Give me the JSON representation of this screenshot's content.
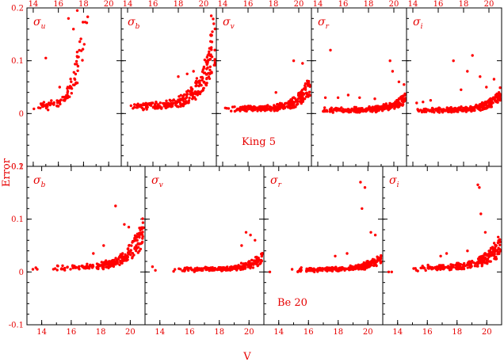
{
  "figure": {
    "ylabel": "Error",
    "xlabel": "V",
    "ylim": [
      -0.1,
      0.2
    ],
    "y_ticks": [
      "0.2",
      "0.1",
      "0",
      "-0.1"
    ],
    "x_ticks": [
      "14",
      "16",
      "18",
      "20"
    ],
    "colors": {
      "points": "#ff0000",
      "text": "#e60000",
      "frame": "#000000"
    }
  },
  "chart_data": [
    {
      "type": "scatter",
      "cluster": "King 5",
      "panel": "σ_u",
      "sym": "σ",
      "sub": "u",
      "xlim": [
        13.5,
        21.0
      ],
      "ylim": [
        -0.1,
        0.2
      ],
      "curve": {
        "a": 0.012,
        "b": 0.00045,
        "c": 1.45,
        "x0": 14.0
      },
      "x_range": [
        14.0,
        19.9
      ],
      "n": 150,
      "seed": 11,
      "outliers": [
        [
          15.0,
          0.105
        ],
        [
          16.8,
          0.18
        ],
        [
          17.5,
          0.195
        ],
        [
          17.2,
          0.16
        ],
        [
          16.1,
          0.05
        ]
      ]
    },
    {
      "type": "scatter",
      "cluster": "King 5",
      "panel": "σ_b",
      "sym": "σ",
      "sub": "b",
      "xlim": [
        13.5,
        21.0
      ],
      "ylim": [
        -0.1,
        0.2
      ],
      "curve": {
        "a": 0.013,
        "b": 0.00018,
        "c": 0.95,
        "x0": 14.0
      },
      "x_range": [
        14.0,
        20.9
      ],
      "n": 260,
      "seed": 23,
      "outliers": [
        [
          18.0,
          0.07
        ],
        [
          18.7,
          0.075
        ],
        [
          19.2,
          0.08
        ],
        [
          20.6,
          0.185
        ],
        [
          20.8,
          0.17
        ]
      ]
    },
    {
      "type": "scatter",
      "cluster": "King 5",
      "panel": "σ_v",
      "sym": "σ",
      "sub": "v",
      "xlim": [
        13.5,
        21.0
      ],
      "ylim": [
        -0.1,
        0.2
      ],
      "curve": {
        "a": 0.008,
        "b": 6e-05,
        "c": 0.95,
        "x0": 14.0
      },
      "x_range": [
        14.0,
        20.9
      ],
      "n": 280,
      "seed": 37,
      "outliers": [
        [
          19.6,
          0.1
        ],
        [
          20.3,
          0.095
        ],
        [
          18.2,
          0.04
        ]
      ]
    },
    {
      "type": "scatter",
      "cluster": "King 5",
      "panel": "σ_r",
      "sym": "σ",
      "sub": "r",
      "xlim": [
        13.5,
        21.0
      ],
      "ylim": [
        -0.1,
        0.2
      ],
      "curve": {
        "a": 0.006,
        "b": 3e-05,
        "c": 0.95,
        "x0": 14.0
      },
      "x_range": [
        14.0,
        20.9
      ],
      "n": 280,
      "seed": 41,
      "outliers": [
        [
          15.0,
          0.12
        ],
        [
          14.6,
          0.03
        ],
        [
          15.6,
          0.03
        ],
        [
          16.4,
          0.035
        ],
        [
          17.3,
          0.03
        ],
        [
          18.5,
          0.028
        ],
        [
          19.7,
          0.1
        ],
        [
          19.9,
          0.08
        ],
        [
          20.4,
          0.06
        ],
        [
          20.8,
          0.055
        ]
      ]
    },
    {
      "type": "scatter",
      "cluster": "King 5",
      "panel": "σ_i",
      "sym": "σ",
      "sub": "i",
      "xlim": [
        13.5,
        21.0
      ],
      "ylim": [
        -0.1,
        0.2
      ],
      "curve": {
        "a": 0.006,
        "b": 4e-05,
        "c": 0.95,
        "x0": 14.0
      },
      "x_range": [
        14.0,
        20.9
      ],
      "n": 280,
      "seed": 53,
      "outliers": [
        [
          14.3,
          0.02
        ],
        [
          14.8,
          0.022
        ],
        [
          15.4,
          0.025
        ],
        [
          17.2,
          0.1
        ],
        [
          18.7,
          0.11
        ],
        [
          18.3,
          0.08
        ],
        [
          19.3,
          0.07
        ],
        [
          20.4,
          0.065
        ],
        [
          17.8,
          0.045
        ],
        [
          19.8,
          0.05
        ]
      ]
    },
    {
      "type": "scatter",
      "cluster": "Be 20",
      "panel": "σ_b",
      "sym": "σ",
      "sub": "b",
      "xlim": [
        13.0,
        21.0
      ],
      "ylim": [
        -0.1,
        0.2
      ],
      "curve": {
        "a": 0.007,
        "b": 0.0001,
        "c": 0.95,
        "x0": 14.0
      },
      "x_range": [
        14.7,
        20.9
      ],
      "n": 240,
      "seed": 61,
      "outliers": [
        [
          13.4,
          0.005
        ],
        [
          13.6,
          0.008
        ],
        [
          13.7,
          0.005
        ],
        [
          19.0,
          0.125
        ],
        [
          19.6,
          0.09
        ],
        [
          19.9,
          0.085
        ],
        [
          18.2,
          0.05
        ],
        [
          17.5,
          0.035
        ]
      ]
    },
    {
      "type": "scatter",
      "cluster": "Be 20",
      "panel": "σ_v",
      "sym": "σ",
      "sub": "v",
      "xlim": [
        13.0,
        21.0
      ],
      "ylim": [
        -0.1,
        0.2
      ],
      "curve": {
        "a": 0.004,
        "b": 3e-05,
        "c": 0.95,
        "x0": 14.0
      },
      "x_range": [
        14.8,
        20.9
      ],
      "n": 240,
      "seed": 73,
      "outliers": [
        [
          13.5,
          0.01
        ],
        [
          13.7,
          0.003
        ],
        [
          19.8,
          0.075
        ],
        [
          20.1,
          0.07
        ],
        [
          20.4,
          0.06
        ],
        [
          19.5,
          0.05
        ]
      ]
    },
    {
      "type": "scatter",
      "cluster": "Be 20",
      "panel": "σ_r",
      "sym": "σ",
      "sub": "r",
      "xlim": [
        13.0,
        21.0
      ],
      "ylim": [
        -0.1,
        0.2
      ],
      "curve": {
        "a": 0.004,
        "b": 3e-05,
        "c": 0.95,
        "x0": 14.0
      },
      "x_range": [
        15.0,
        20.9
      ],
      "n": 240,
      "seed": 83,
      "outliers": [
        [
          13.4,
          0.0
        ],
        [
          14.9,
          0.005
        ],
        [
          19.5,
          0.17
        ],
        [
          19.8,
          0.16
        ],
        [
          19.6,
          0.12
        ],
        [
          20.2,
          0.075
        ],
        [
          20.5,
          0.07
        ],
        [
          18.6,
          0.035
        ],
        [
          17.8,
          0.03
        ]
      ]
    },
    {
      "type": "scatter",
      "cluster": "Be 20",
      "panel": "σ_i",
      "sym": "σ",
      "sub": "i",
      "xlim": [
        13.0,
        21.0
      ],
      "ylim": [
        -0.1,
        0.2
      ],
      "curve": {
        "a": 0.007,
        "b": 6e-05,
        "c": 0.95,
        "x0": 14.0
      },
      "x_range": [
        14.8,
        20.9
      ],
      "n": 250,
      "seed": 97,
      "outliers": [
        [
          13.4,
          0.0
        ],
        [
          13.6,
          0.0
        ],
        [
          19.4,
          0.165
        ],
        [
          19.5,
          0.16
        ],
        [
          19.6,
          0.11
        ],
        [
          19.9,
          0.075
        ],
        [
          18.7,
          0.04
        ],
        [
          17.3,
          0.035
        ],
        [
          16.9,
          0.03
        ]
      ]
    }
  ],
  "annotations": {
    "king5": "King 5",
    "be20": "Be 20"
  }
}
